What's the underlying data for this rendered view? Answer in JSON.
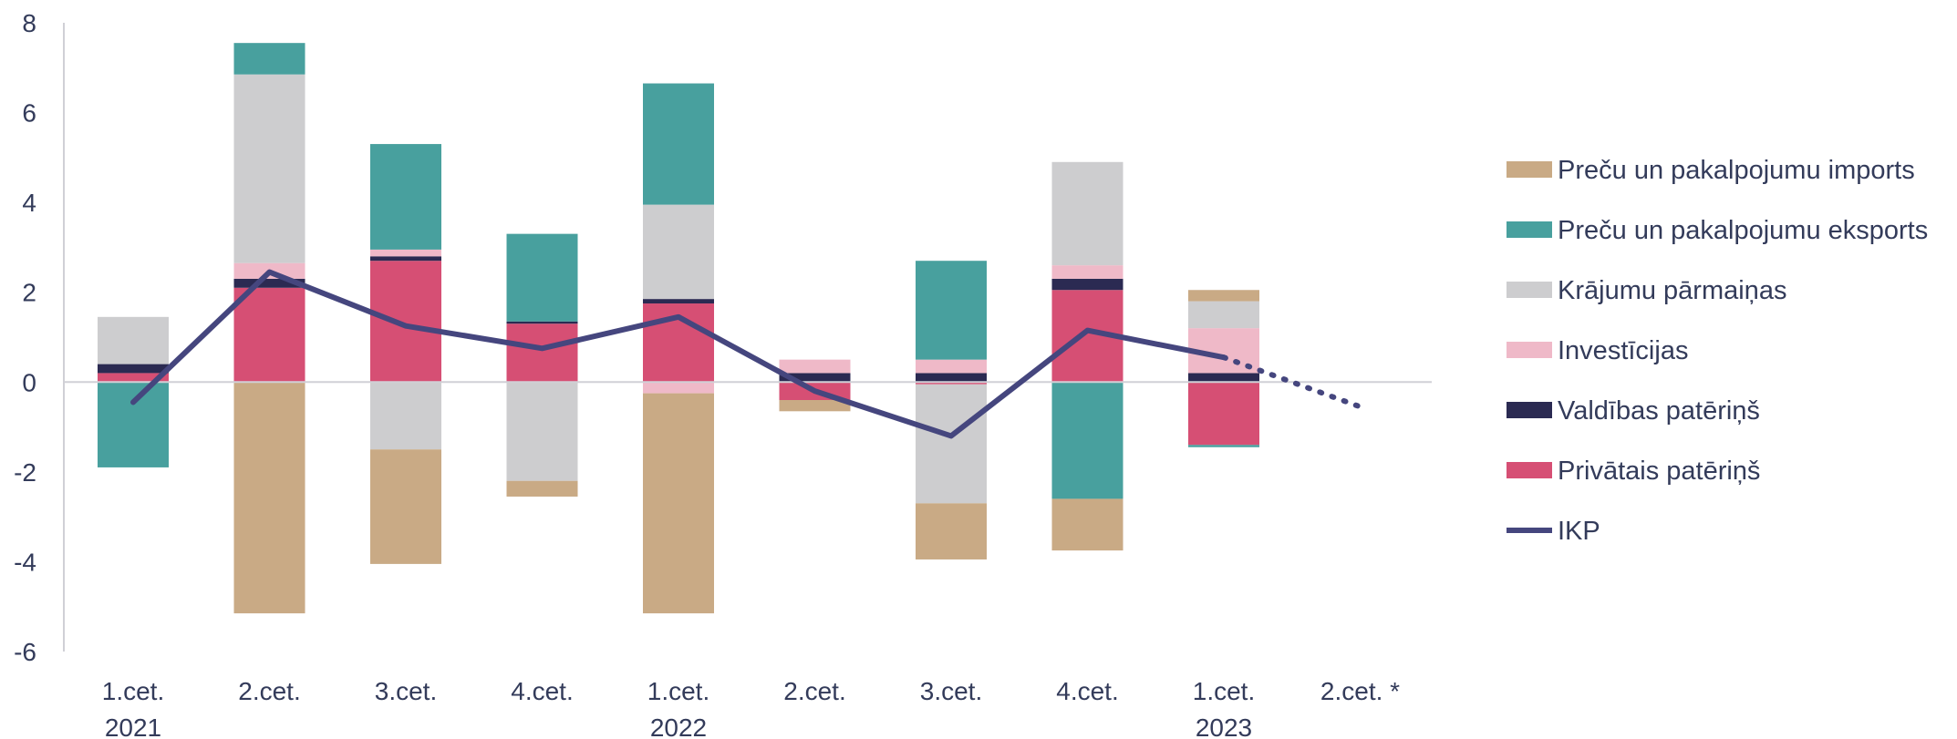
{
  "chart_data": {
    "type": "bar",
    "stacked": true,
    "title": "",
    "xlabel": "",
    "ylabel": "",
    "ylim": [
      -6,
      8
    ],
    "yticks": [
      -6,
      -4,
      -2,
      0,
      2,
      4,
      6,
      8
    ],
    "grid": false,
    "legend_position": "right",
    "categories": [
      {
        "label": "1.cet.",
        "year": "2021"
      },
      {
        "label": "2.cet.",
        "year": ""
      },
      {
        "label": "3.cet.",
        "year": ""
      },
      {
        "label": "4.cet.",
        "year": ""
      },
      {
        "label": "1.cet.",
        "year": "2022"
      },
      {
        "label": "2.cet.",
        "year": ""
      },
      {
        "label": "3.cet.",
        "year": ""
      },
      {
        "label": "4.cet.",
        "year": ""
      },
      {
        "label": "1.cet.",
        "year": "2023"
      },
      {
        "label": "2.cet. *",
        "year": ""
      }
    ],
    "series": [
      {
        "name": "Privātais patēriņš",
        "color": "#d64f74",
        "values": [
          0.2,
          2.1,
          2.7,
          1.3,
          1.75,
          -0.4,
          -0.05,
          2.05,
          -1.4,
          null
        ]
      },
      {
        "name": "Valdības patēriņš",
        "color": "#2b2a52",
        "values": [
          0.2,
          0.2,
          0.1,
          0.05,
          0.1,
          0.2,
          0.2,
          0.25,
          0.2,
          null
        ]
      },
      {
        "name": "Investīcijas",
        "color": "#efb9c8",
        "values": [
          0.0,
          0.35,
          0.15,
          0.0,
          -0.25,
          0.3,
          0.3,
          0.3,
          1.0,
          null
        ]
      },
      {
        "name": "Krājumu pārmaiņas",
        "color": "#cdcdcf",
        "values": [
          1.05,
          4.2,
          -1.5,
          -2.2,
          2.1,
          0.0,
          -2.65,
          2.3,
          0.6,
          null
        ]
      },
      {
        "name": "Preču un pakalpojumu eksports",
        "color": "#48a09e",
        "values": [
          -1.9,
          0.7,
          2.35,
          1.95,
          2.7,
          0.0,
          2.2,
          -2.6,
          -0.05,
          null
        ]
      },
      {
        "name": "Preču un pakalpojumu imports",
        "color": "#c9aa85",
        "values": [
          0.0,
          -5.15,
          -2.55,
          -0.35,
          -4.9,
          -0.25,
          -1.25,
          -1.15,
          0.25,
          null
        ]
      }
    ],
    "line": {
      "name": "IKP",
      "color": "#45467e",
      "values": [
        -0.45,
        2.45,
        1.25,
        0.75,
        1.45,
        -0.2,
        -1.2,
        1.15,
        0.55,
        -0.55
      ],
      "dotted_last_segment": true
    },
    "legend_order": [
      "Preču un pakalpojumu imports",
      "Preču un pakalpojumu eksports",
      "Krājumu pārmaiņas",
      "Investīcijas",
      "Valdības patēriņš",
      "Privātais patēriņš",
      "IKP"
    ]
  }
}
